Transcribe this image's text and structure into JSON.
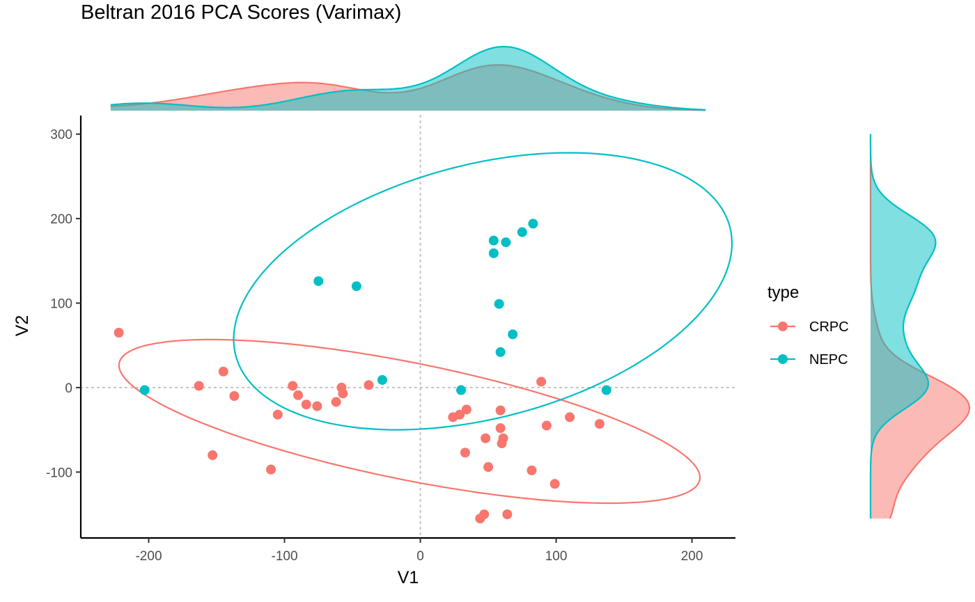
{
  "chart_data": {
    "type": "scatter",
    "title": "Beltran 2016 PCA Scores (Varimax)",
    "xlabel": "V1",
    "ylabel": "V2",
    "xlim": [
      -250,
      232
    ],
    "ylim": [
      -178,
      322
    ],
    "xticks": [
      -200,
      -100,
      0,
      100,
      200
    ],
    "yticks": [
      -100,
      0,
      100,
      200,
      300
    ],
    "reference_lines": {
      "x": 0,
      "y": 0,
      "style": "dotted"
    },
    "grid": false,
    "legend": {
      "title": "type",
      "position": "right"
    },
    "series": [
      {
        "name": "CRPC",
        "color": "#F8766D",
        "x": [
          -222,
          -163,
          -145,
          -137,
          -110,
          -105,
          -153,
          -94,
          -90,
          -84,
          -76,
          -62,
          -58,
          -57,
          -38,
          24,
          29,
          34,
          33,
          47,
          48,
          50,
          59,
          59,
          60,
          61,
          64,
          44,
          82,
          89,
          93,
          99,
          110,
          132
        ],
        "y": [
          65,
          2,
          19,
          -10,
          -97,
          -32,
          -80,
          2,
          -9,
          -20,
          -22,
          -17,
          0,
          -7,
          3,
          -35,
          -32,
          -26,
          -77,
          -150,
          -60,
          -94,
          -27,
          -48,
          -66,
          -60,
          -150,
          -155,
          -98,
          7,
          -45,
          -114,
          -35,
          -43
        ]
      },
      {
        "name": "NEPC",
        "color": "#00BFC4",
        "x": [
          -203,
          -75,
          -47,
          -28,
          30,
          54,
          54,
          63,
          75,
          83,
          58,
          68,
          59,
          137
        ],
        "y": [
          -3,
          126,
          120,
          9,
          -3,
          174,
          159,
          172,
          184,
          194,
          99,
          63,
          42,
          -3
        ]
      }
    ],
    "ellipses": [
      {
        "name": "CRPC",
        "color": "#F8766D",
        "center": [
          -8,
          -40
        ],
        "a": 225,
        "b": 67,
        "angle_deg": -19
      },
      {
        "name": "NEPC",
        "color": "#00BFC4",
        "center": [
          46,
          114
        ],
        "a": 203,
        "b": 139,
        "angle_deg": 36
      }
    ],
    "marginal_densities": {
      "top": "V1",
      "right": "V2",
      "alpha": 0.5
    }
  }
}
